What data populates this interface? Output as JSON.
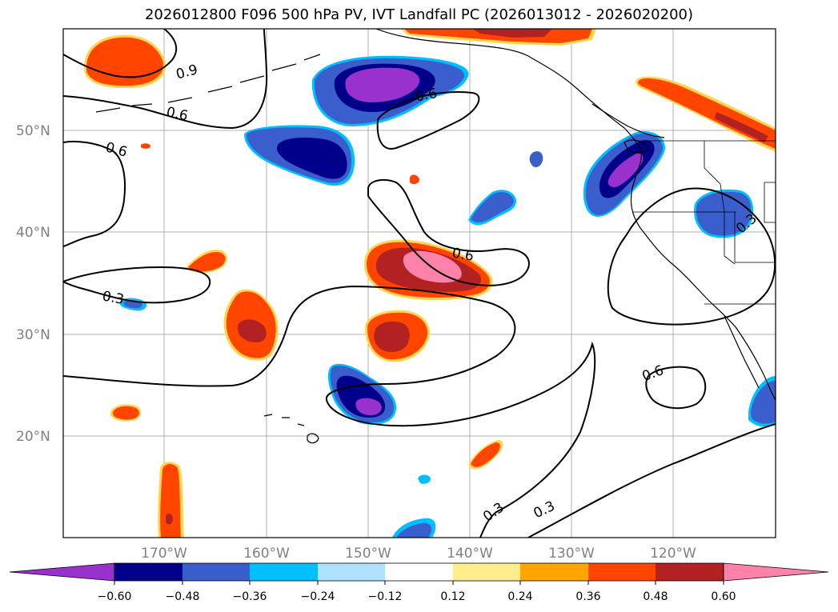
{
  "title": "2026012800 F096 500 hPa PV, IVT Landfall PC (2026013012 - 2026020200)",
  "latitude_labels": [
    "50°N",
    "40°N",
    "30°N",
    "20°N"
  ],
  "longitude_labels": [
    "170°W",
    "160°W",
    "150°W",
    "140°W",
    "130°W",
    "120°W"
  ],
  "contour_labels": [
    "0.9",
    "0.6",
    "0.6",
    "0.6",
    "0.3",
    "0.6",
    "0.3",
    "0.6",
    "0.3",
    "0.3"
  ],
  "colorbar": {
    "tick_labels": [
      "−0.60",
      "−0.48",
      "−0.36",
      "−0.24",
      "−0.12",
      "0.12",
      "0.24",
      "0.36",
      "0.48",
      "0.60"
    ],
    "colors": [
      "#9932cc",
      "#00008b",
      "#3a5fcd",
      "#00bfff",
      "#b0e2ff",
      "#ffffff",
      "#ffec8b",
      "#ffa500",
      "#ff4500",
      "#b22222",
      "#ff82ab"
    ]
  },
  "colors": {
    "coast": "#000000",
    "grid": "#b0b0b0",
    "axis_label": "#808080"
  }
}
